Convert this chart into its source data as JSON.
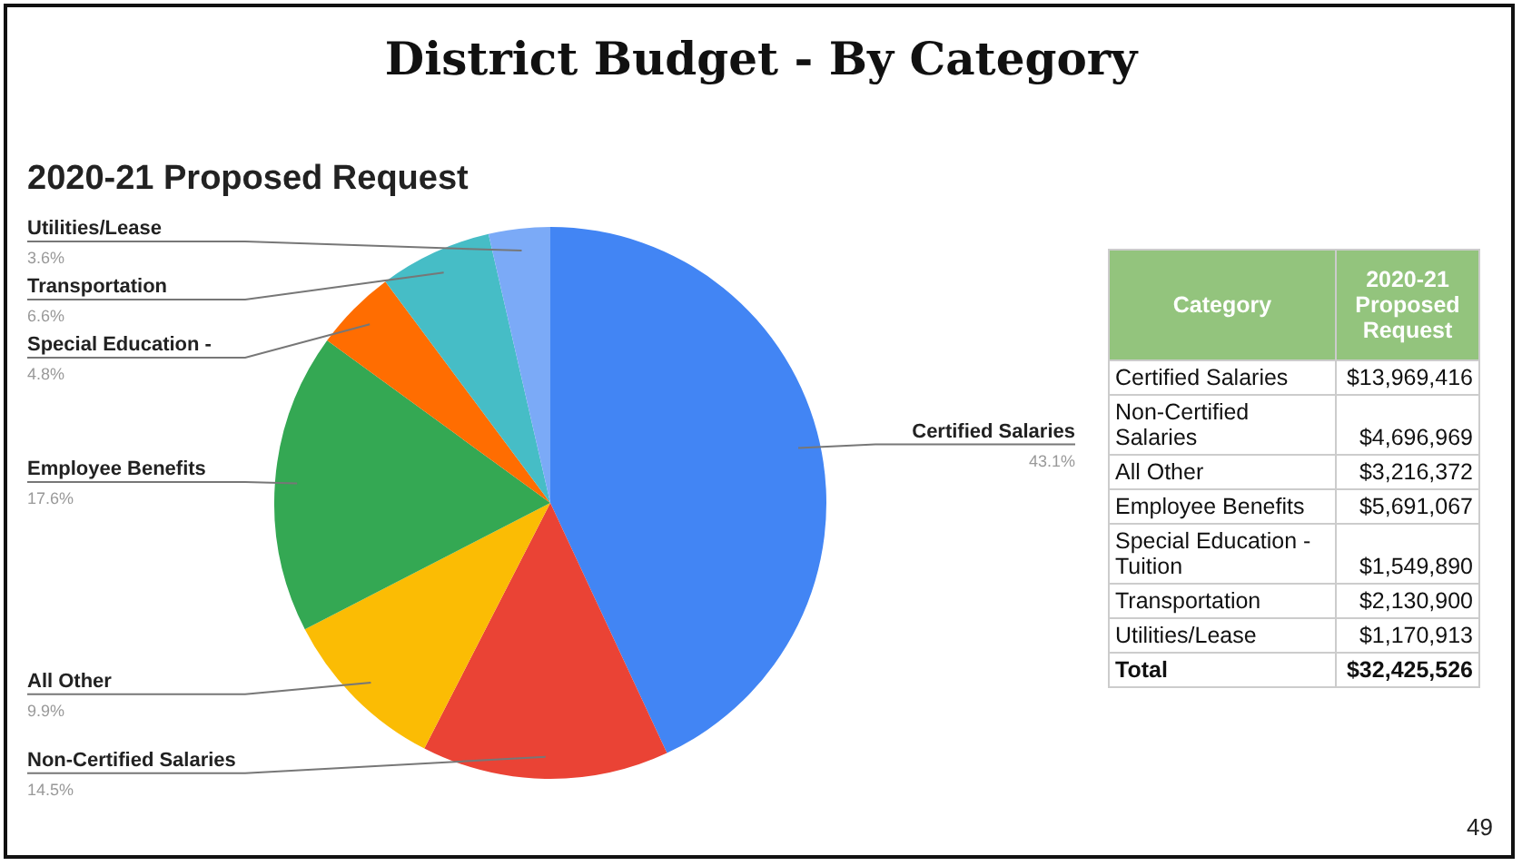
{
  "chart_data": [
    {
      "type": "pie",
      "title": "District Budget - By Category",
      "subtitle": "2020-21 Proposed Request",
      "categories": [
        "Certified Salaries",
        "Non-Certified Salaries",
        "All Other",
        "Employee Benefits",
        "Special Education -",
        "Transportation",
        "Utilities/Lease"
      ],
      "values": [
        43.1,
        14.5,
        9.9,
        17.6,
        4.8,
        6.6,
        3.6
      ],
      "value_labels": [
        "43.1%",
        "14.5%",
        "9.9%",
        "17.6%",
        "4.8%",
        "6.6%",
        "3.6%"
      ],
      "colors": [
        "#4285f4",
        "#ea4335",
        "#fbbc04",
        "#34a853",
        "#ff6d01",
        "#46bdc6",
        "#7baaf7"
      ],
      "legend": false,
      "annotations": [
        "49"
      ]
    },
    {
      "type": "other",
      "xlabel": "Category",
      "ylabel": "2020-21 Proposed Request",
      "categories": [
        "Certified Salaries",
        "Non-Certified Salaries",
        "All Other",
        "Employee Benefits",
        "Special Education - Tuition",
        "Transportation",
        "Utilities/Lease",
        "Total"
      ],
      "value_labels": [
        "$13,969,416",
        "$4,696,969",
        "$3,216,372",
        "$5,691,067",
        "$1,549,890",
        "$2,130,900",
        "$1,170,913",
        "$32,425,526"
      ]
    }
  ]
}
